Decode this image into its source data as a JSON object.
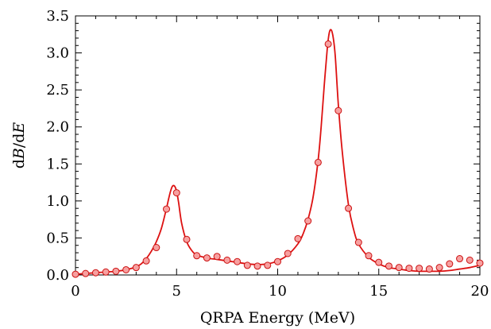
{
  "chart_data": {
    "type": "line",
    "xlabel": "QRPA Energy (MeV)",
    "ylabel_parts": [
      "d",
      "B",
      "/d",
      "E"
    ],
    "xlim": [
      0,
      20
    ],
    "ylim": [
      0,
      3.5
    ],
    "x_ticks": [
      0,
      5,
      10,
      15,
      20
    ],
    "x_tick_labels": [
      "0",
      "5",
      "10",
      "15",
      "20"
    ],
    "y_ticks": [
      0,
      0.5,
      1.0,
      1.5,
      2.0,
      2.5,
      3.0,
      3.5
    ],
    "y_tick_labels": [
      "0.0",
      "0.5",
      "1.0",
      "1.5",
      "2.0",
      "2.5",
      "3.0",
      "3.5"
    ],
    "grid": false,
    "legend": "none",
    "colors": {
      "line": "#dd1111",
      "marker_fill": "#f7a0a0",
      "marker_stroke": "#cc1111"
    },
    "series": [
      {
        "kind": "line",
        "x": [
          0,
          0.5,
          1,
          1.5,
          2,
          2.5,
          3,
          3.25,
          3.5,
          3.75,
          4,
          4.25,
          4.5,
          4.6,
          4.7,
          4.8,
          4.9,
          5.0,
          5.1,
          5.25,
          5.5,
          5.75,
          6,
          6.5,
          7,
          7.5,
          8,
          8.5,
          9,
          9.5,
          10,
          10.5,
          11,
          11.25,
          11.5,
          11.75,
          12,
          12.15,
          12.3,
          12.45,
          12.55,
          12.65,
          12.75,
          12.85,
          13,
          13.2,
          13.5,
          13.75,
          14,
          14.5,
          15,
          15.5,
          16,
          16.5,
          17,
          17.5,
          18,
          18.5,
          19,
          19.5,
          20
        ],
        "y": [
          0.01,
          0.02,
          0.03,
          0.04,
          0.05,
          0.07,
          0.11,
          0.15,
          0.22,
          0.32,
          0.45,
          0.63,
          0.9,
          1.02,
          1.13,
          1.2,
          1.2,
          1.13,
          0.98,
          0.7,
          0.45,
          0.33,
          0.27,
          0.23,
          0.21,
          0.19,
          0.17,
          0.15,
          0.14,
          0.15,
          0.19,
          0.27,
          0.42,
          0.55,
          0.75,
          1.05,
          1.55,
          2.0,
          2.55,
          3.05,
          3.27,
          3.31,
          3.2,
          2.95,
          2.3,
          1.65,
          0.95,
          0.62,
          0.42,
          0.24,
          0.15,
          0.1,
          0.08,
          0.06,
          0.05,
          0.05,
          0.05,
          0.06,
          0.08,
          0.1,
          0.13
        ]
      },
      {
        "kind": "scatter",
        "x": [
          0,
          0.5,
          1,
          1.5,
          2,
          2.5,
          3,
          3.5,
          4,
          4.5,
          5,
          5.5,
          6,
          6.5,
          7,
          7.5,
          8,
          8.5,
          9,
          9.5,
          10,
          10.5,
          11,
          11.5,
          12,
          12.5,
          13,
          13.5,
          14,
          14.5,
          15,
          15.5,
          16,
          16.5,
          17,
          17.5,
          18,
          18.5,
          19,
          19.5,
          20
        ],
        "y": [
          0.01,
          0.02,
          0.03,
          0.04,
          0.05,
          0.07,
          0.1,
          0.19,
          0.37,
          0.89,
          1.11,
          0.48,
          0.26,
          0.23,
          0.25,
          0.2,
          0.18,
          0.13,
          0.12,
          0.13,
          0.18,
          0.29,
          0.49,
          0.73,
          1.52,
          3.12,
          2.22,
          0.9,
          0.44,
          0.26,
          0.17,
          0.12,
          0.1,
          0.09,
          0.09,
          0.08,
          0.1,
          0.15,
          0.22,
          0.2,
          0.16
        ]
      }
    ]
  }
}
